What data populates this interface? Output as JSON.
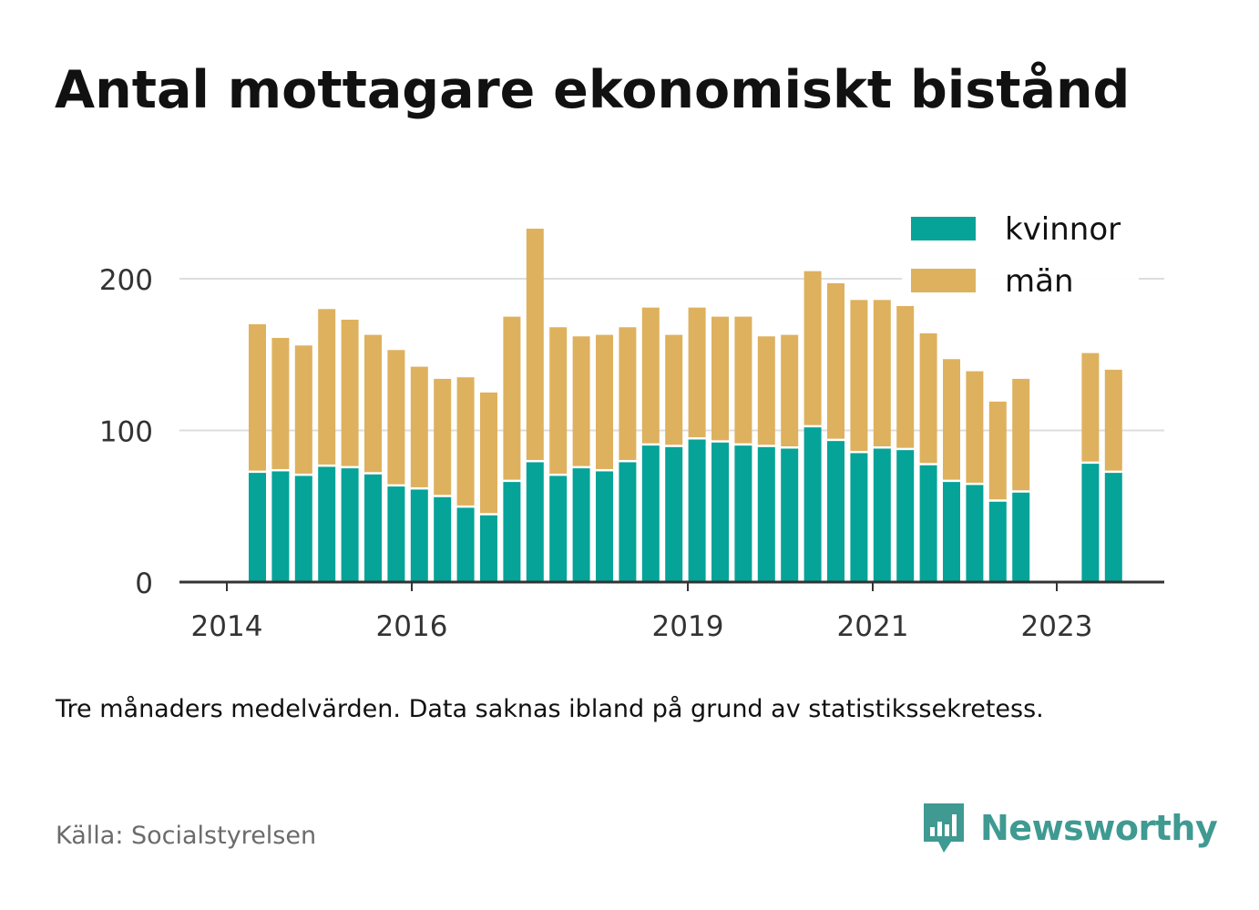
{
  "title": "Antal mottagare ekonomiskt bistånd",
  "note": "Tre månaders medelvärden. Data saknas ibland på grund av statistikssekretess.",
  "source": "Källa: Socialstyrelsen",
  "brand": {
    "name": "Newsworthy",
    "icon": "bar-chart-speech-bubble-icon",
    "color": "#3f9a92"
  },
  "chart_data": {
    "type": "bar",
    "stacked": true,
    "x_ticks": [
      "2014",
      "2016",
      "2019",
      "2021",
      "2023"
    ],
    "y_ticks": [
      0,
      100,
      200
    ],
    "ylim": [
      0,
      240
    ],
    "grid": true,
    "legend_position": "top-right",
    "series": [
      {
        "name": "kvinnor",
        "color": "#05a398",
        "values": [
          72,
          73,
          70,
          76,
          75,
          71,
          63,
          61,
          56,
          49,
          44,
          66,
          79,
          70,
          75,
          73,
          79,
          90,
          89,
          94,
          92,
          90,
          89,
          88,
          102,
          93,
          85,
          88,
          87,
          77,
          66,
          64,
          53,
          59,
          null,
          null,
          78,
          72
        ]
      },
      {
        "name": "män",
        "color": "#deb15e",
        "values": [
          98,
          88,
          86,
          104,
          98,
          92,
          90,
          81,
          78,
          86,
          81,
          109,
          154,
          98,
          87,
          90,
          89,
          91,
          74,
          87,
          83,
          85,
          73,
          75,
          103,
          104,
          101,
          98,
          95,
          87,
          81,
          75,
          66,
          75,
          null,
          null,
          73,
          68
        ]
      }
    ]
  }
}
